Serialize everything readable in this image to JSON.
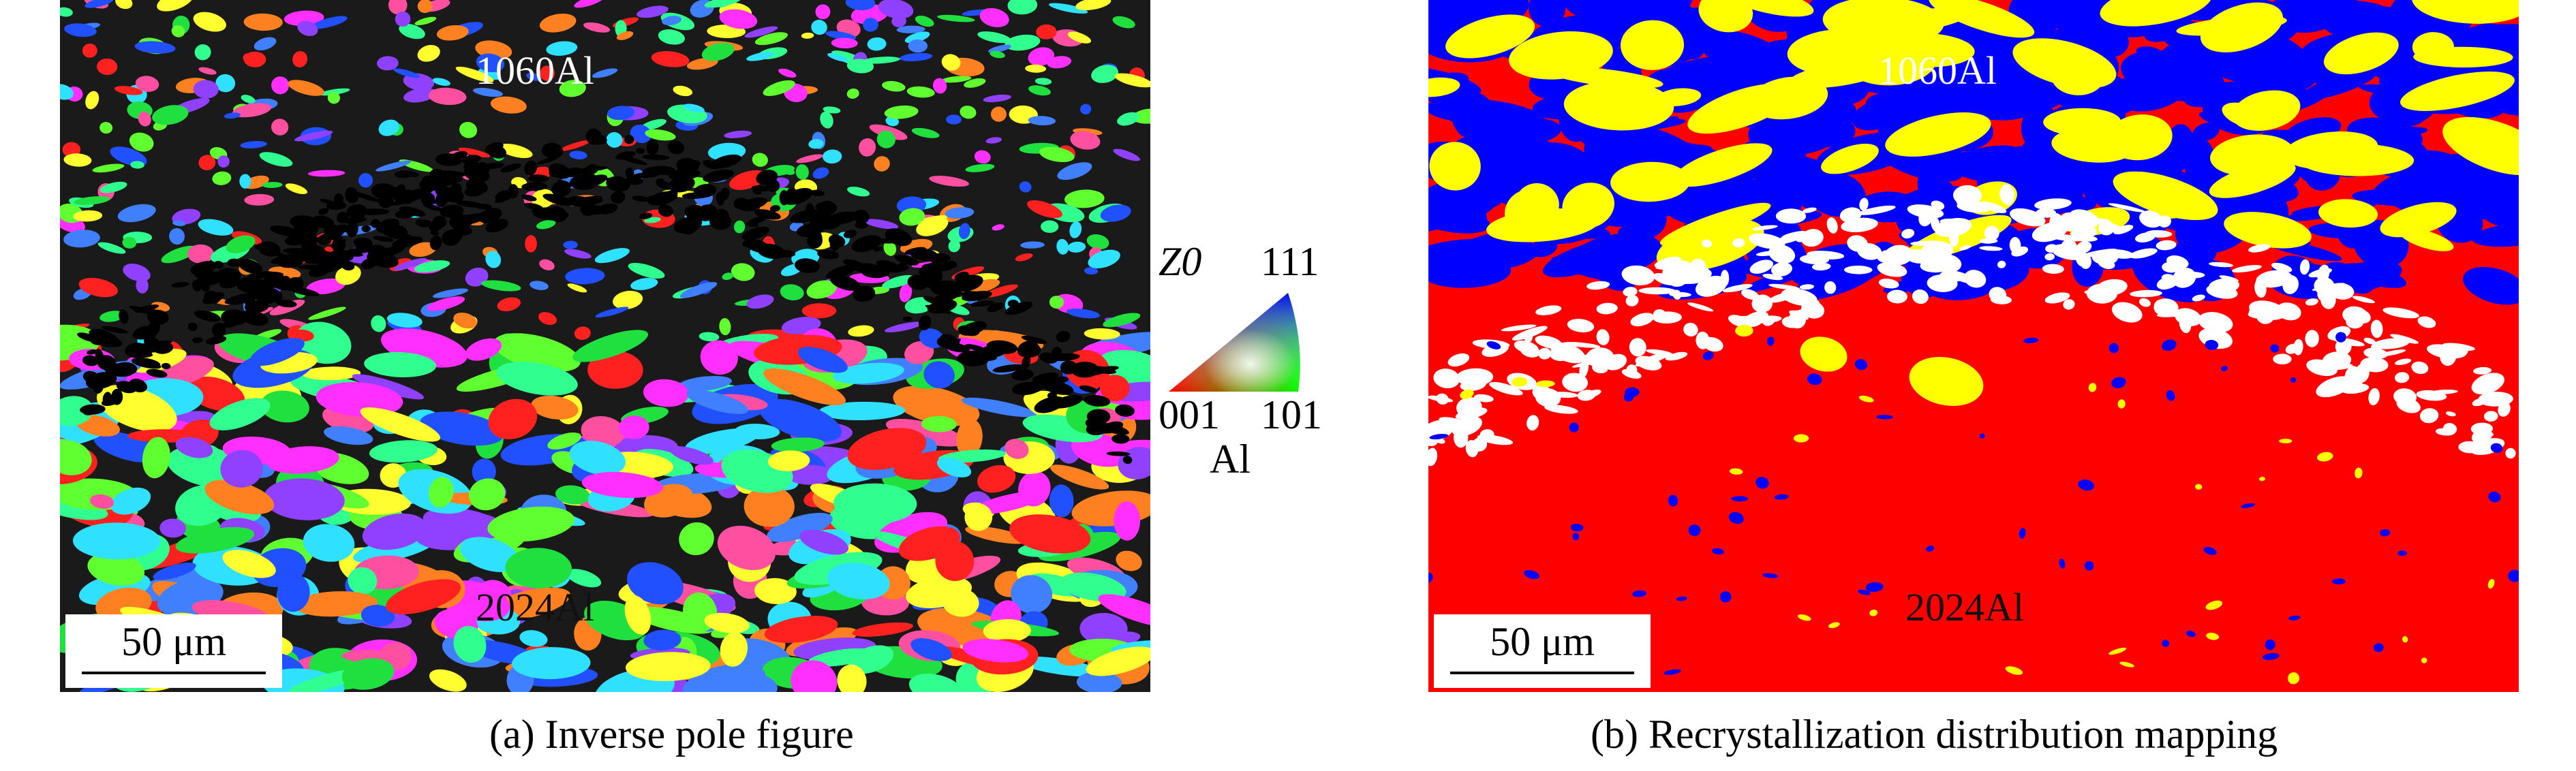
{
  "panel_a": {
    "label_top": "1060Al",
    "label_bottom": "2024Al",
    "scalebar": "50 μm",
    "caption": "(a) Inverse pole figure"
  },
  "panel_b": {
    "label_top": "1060Al",
    "label_bottom": "2024Al",
    "scalebar": "50 μm",
    "caption": "(b) Recrystallization distribution mapping"
  },
  "ipf_legend": {
    "axis": "Z0",
    "corner_top": "111",
    "corner_left": "001",
    "corner_right": "101",
    "material": "Al"
  },
  "colors": {
    "recrystallized": "#0000ff",
    "substructured": "#ffff00",
    "deformed": "#ff0000",
    "unindexed": "#ffffff"
  }
}
